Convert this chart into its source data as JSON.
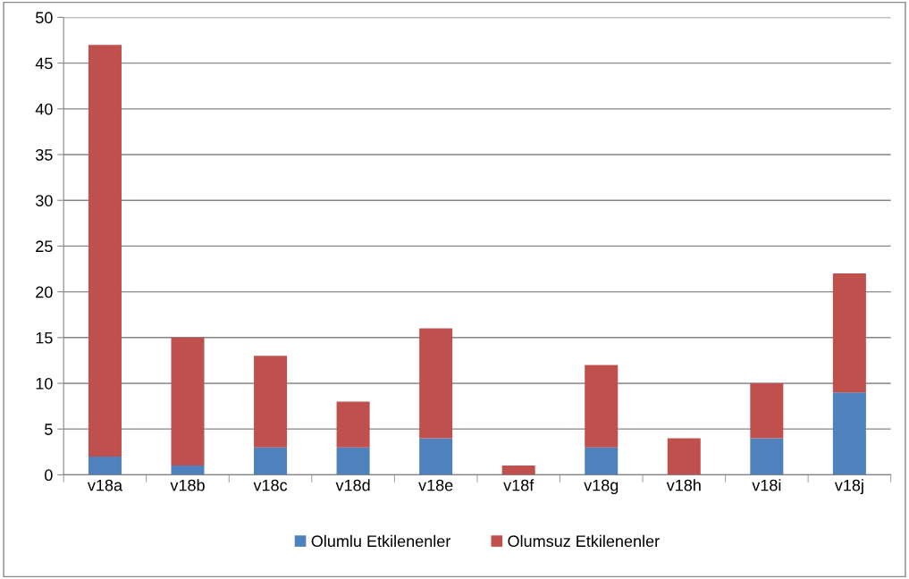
{
  "chart_data": {
    "type": "bar",
    "stacked": true,
    "categories": [
      "v18a",
      "v18b",
      "v18c",
      "v18d",
      "v18e",
      "v18f",
      "v18g",
      "v18h",
      "v18i",
      "v18j"
    ],
    "series": [
      {
        "name": "Olumlu Etkilenenler",
        "color": "#4f81bd",
        "values": [
          2,
          1,
          3,
          3,
          4,
          0,
          3,
          0,
          4,
          9
        ]
      },
      {
        "name": "Olumsuz Etkilenenler",
        "color": "#c0504d",
        "values": [
          45,
          14,
          10,
          5,
          12,
          1,
          9,
          4,
          6,
          13
        ]
      }
    ],
    "ylim": [
      0,
      50
    ],
    "yticks": [
      0,
      5,
      10,
      15,
      20,
      25,
      30,
      35,
      40,
      45,
      50
    ],
    "grid": "y",
    "legend": "bottom"
  }
}
